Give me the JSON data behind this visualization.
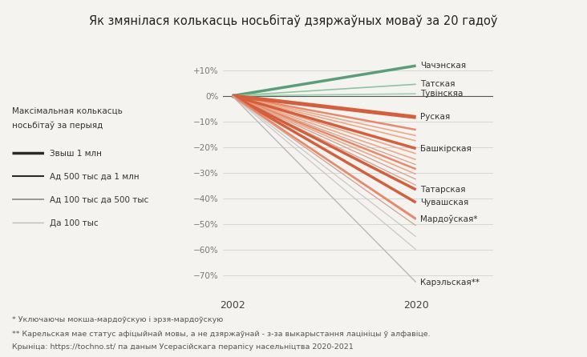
{
  "title": "Як змянілася колькасць носьбітаў дзяржаўных моваў за 20 гадоў",
  "languages": [
    {
      "name": "Чачэнская",
      "change": 0.117,
      "color": "#5a9e78",
      "lw": 2.5
    },
    {
      "name": "Татская",
      "change": 0.045,
      "color": "#8ec4a0",
      "lw": 1.2
    },
    {
      "name": "Тувінскяа",
      "change": 0.008,
      "color": "#9ecfb0",
      "lw": 1.2
    },
    {
      "name": "Руская",
      "change": -0.083,
      "color": "#d45f3c",
      "lw": 3.5
    },
    {
      "name": "Башкірская",
      "change": -0.205,
      "color": "#d45f3c",
      "lw": 2.5
    },
    {
      "name": "Татарская",
      "change": -0.365,
      "color": "#d45f3c",
      "lw": 2.5
    },
    {
      "name": "Чувашская",
      "change": -0.415,
      "color": "#d45f3c",
      "lw": 2.5
    },
    {
      "name": "Мардоўская*",
      "change": -0.48,
      "color": "#e8896a",
      "lw": 1.8
    },
    {
      "name": "Карэльская**",
      "change": -0.725,
      "color": "#b8b8b8",
      "lw": 1.0
    }
  ],
  "other_lines": [
    {
      "change": -0.132,
      "color": "#e8896a",
      "lw": 1.8
    },
    {
      "change": -0.155,
      "color": "#eba98a",
      "lw": 1.2
    },
    {
      "change": -0.175,
      "color": "#eba98a",
      "lw": 1.2
    },
    {
      "change": -0.225,
      "color": "#eba98a",
      "lw": 1.2
    },
    {
      "change": -0.248,
      "color": "#eba98a",
      "lw": 1.2
    },
    {
      "change": -0.268,
      "color": "#d4a090",
      "lw": 0.9
    },
    {
      "change": -0.285,
      "color": "#e8896a",
      "lw": 1.8
    },
    {
      "change": -0.305,
      "color": "#eba98a",
      "lw": 1.2
    },
    {
      "change": -0.325,
      "color": "#d4a090",
      "lw": 0.9
    },
    {
      "change": -0.348,
      "color": "#d4a090",
      "lw": 0.9
    },
    {
      "change": -0.475,
      "color": "#d4a090",
      "lw": 0.9
    },
    {
      "change": -0.505,
      "color": "#d4a090",
      "lw": 0.9
    },
    {
      "change": -0.548,
      "color": "#c8c8c8",
      "lw": 0.9
    },
    {
      "change": -0.598,
      "color": "#c8c8c8",
      "lw": 0.9
    }
  ],
  "legend_title_line1": "Максімальная колькасць",
  "legend_title_line2": "носьбітаў за перыяд",
  "legend_items": [
    {
      "label": "Звыш 1 млн",
      "color": "#2a2a2a",
      "lw": 2.5
    },
    {
      "label": "Ад 500 тыс да 1 млн",
      "color": "#2a2a2a",
      "lw": 1.5
    },
    {
      "label": "Ад 100 тыс да 500 тыс",
      "color": "#888888",
      "lw": 1.2
    },
    {
      "label": "Да 100 тыс",
      "color": "#bbbbbb",
      "lw": 1.0
    }
  ],
  "footnote1": "* Уключаючы мокша-мардоўскую і эрзя-мардоўскую",
  "footnote2": "** Карельская мае статус афіцыйнай мовы, а не дзяржаўнай - з-за выкарыстання лацініцы ў алфавіце.",
  "footnote3": "Крыніца: https://tochno.st/ па даным Усерасійскага перапісу насельніцтва 2020-2021",
  "bg_color": "#f5f3ef",
  "yticks": [
    0.1,
    0.0,
    -0.1,
    -0.2,
    -0.3,
    -0.4,
    -0.5,
    -0.6,
    -0.7
  ],
  "ytick_labels": [
    "+10%",
    "0%",
    "−10%",
    "−20%",
    "−30%",
    "−40%",
    "−50%",
    "−60%",
    "−70%"
  ]
}
